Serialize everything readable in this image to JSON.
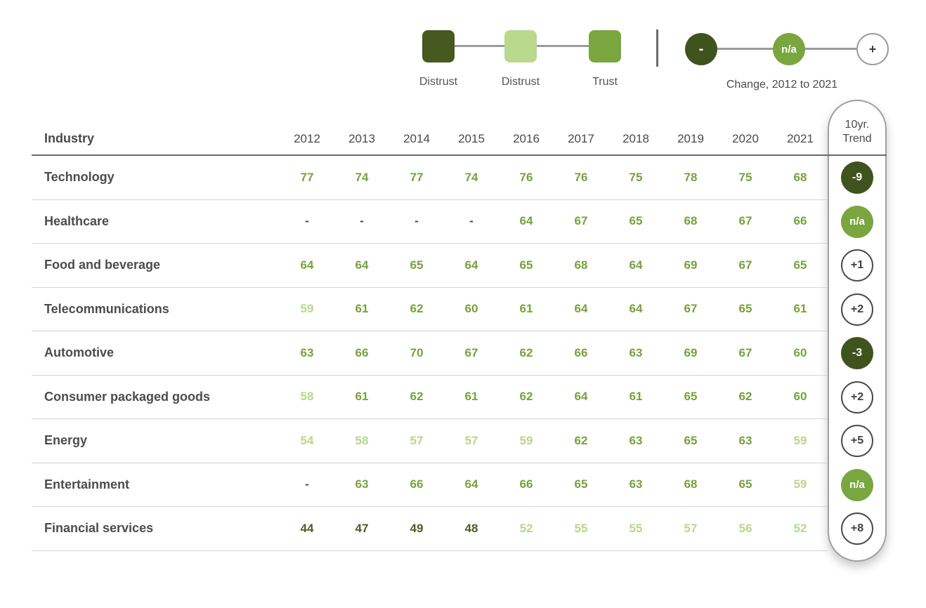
{
  "legend": {
    "scale": {
      "items": [
        {
          "name": "distrust-dark",
          "label": "Distrust",
          "color": "#46591e"
        },
        {
          "name": "distrust-light",
          "label": "Distrust",
          "color": "#b9d98c"
        },
        {
          "name": "trust",
          "label": "Trust",
          "color": "#7aa640"
        }
      ]
    },
    "change": {
      "minus_label": "-",
      "na_label": "n/a",
      "plus_label": "+",
      "caption": "Change, 2012 to 2021"
    }
  },
  "table": {
    "industry_header": "Industry",
    "years": [
      "2012",
      "2013",
      "2014",
      "2015",
      "2016",
      "2017",
      "2018",
      "2019",
      "2020",
      "2021"
    ],
    "trend_header_line1": "10yr.",
    "trend_header_line2": "Trend",
    "rows": [
      {
        "industry": "Technology",
        "values": [
          "77",
          "74",
          "77",
          "74",
          "76",
          "76",
          "75",
          "78",
          "75",
          "68"
        ],
        "tones": [
          "trust",
          "trust",
          "trust",
          "trust",
          "trust",
          "trust",
          "trust",
          "trust",
          "trust",
          "trust"
        ],
        "trend": {
          "label": "-9",
          "style": "dark"
        }
      },
      {
        "industry": "Healthcare",
        "values": [
          "-",
          "-",
          "-",
          "-",
          "64",
          "67",
          "65",
          "68",
          "67",
          "66"
        ],
        "tones": [
          "dash",
          "dash",
          "dash",
          "dash",
          "trust",
          "trust",
          "trust",
          "trust",
          "trust",
          "trust"
        ],
        "trend": {
          "label": "n/a",
          "style": "na"
        }
      },
      {
        "industry": "Food and beverage",
        "values": [
          "64",
          "64",
          "65",
          "64",
          "65",
          "68",
          "64",
          "69",
          "67",
          "65"
        ],
        "tones": [
          "trust",
          "trust",
          "trust",
          "trust",
          "trust",
          "trust",
          "trust",
          "trust",
          "trust",
          "trust"
        ],
        "trend": {
          "label": "+1",
          "style": "plus"
        }
      },
      {
        "industry": "Telecommunications",
        "values": [
          "59",
          "61",
          "62",
          "60",
          "61",
          "64",
          "64",
          "67",
          "65",
          "61"
        ],
        "tones": [
          "light",
          "trust",
          "trust",
          "trust",
          "trust",
          "trust",
          "trust",
          "trust",
          "trust",
          "trust"
        ],
        "trend": {
          "label": "+2",
          "style": "plus"
        }
      },
      {
        "industry": "Automotive",
        "values": [
          "63",
          "66",
          "70",
          "67",
          "62",
          "66",
          "63",
          "69",
          "67",
          "60"
        ],
        "tones": [
          "trust",
          "trust",
          "trust",
          "trust",
          "trust",
          "trust",
          "trust",
          "trust",
          "trust",
          "trust"
        ],
        "trend": {
          "label": "-3",
          "style": "dark"
        }
      },
      {
        "industry": "Consumer packaged goods",
        "values": [
          "58",
          "61",
          "62",
          "61",
          "62",
          "64",
          "61",
          "65",
          "62",
          "60"
        ],
        "tones": [
          "light",
          "trust",
          "trust",
          "trust",
          "trust",
          "trust",
          "trust",
          "trust",
          "trust",
          "trust"
        ],
        "trend": {
          "label": "+2",
          "style": "plus"
        }
      },
      {
        "industry": "Energy",
        "values": [
          "54",
          "58",
          "57",
          "57",
          "59",
          "62",
          "63",
          "65",
          "63",
          "59"
        ],
        "tones": [
          "light",
          "light",
          "light",
          "light",
          "light",
          "trust",
          "trust",
          "trust",
          "trust",
          "light"
        ],
        "trend": {
          "label": "+5",
          "style": "plus"
        }
      },
      {
        "industry": "Entertainment",
        "values": [
          "-",
          "63",
          "66",
          "64",
          "66",
          "65",
          "63",
          "68",
          "65",
          "59"
        ],
        "tones": [
          "dash",
          "trust",
          "trust",
          "trust",
          "trust",
          "trust",
          "trust",
          "trust",
          "trust",
          "light"
        ],
        "trend": {
          "label": "n/a",
          "style": "na"
        }
      },
      {
        "industry": "Financial services",
        "values": [
          "44",
          "47",
          "49",
          "48",
          "52",
          "55",
          "55",
          "57",
          "56",
          "52"
        ],
        "tones": [
          "dark",
          "dark",
          "dark",
          "dark",
          "light",
          "light",
          "light",
          "light",
          "light",
          "light"
        ],
        "trend": {
          "label": "+8",
          "style": "plus"
        }
      }
    ]
  },
  "colors": {
    "dark_green": "#46591e",
    "light_green": "#b9d98c",
    "trust_green": "#7aa640",
    "value_trust": "#76a23e",
    "value_light": "#b7d78b",
    "value_dark": "#4b5f26",
    "text_gray": "#4a4a4a",
    "capsule_border": "#a0a0a0"
  },
  "chart_data": {
    "type": "table",
    "title": "Trust in industry sectors, 2012 to 2021",
    "categories": [
      "2012",
      "2013",
      "2014",
      "2015",
      "2016",
      "2017",
      "2018",
      "2019",
      "2020",
      "2021"
    ],
    "legend": [
      "Distrust (dark green)",
      "Distrust (light green)",
      "Trust (green)",
      "Change, 2012 to 2021: - / n/a / +"
    ],
    "series": [
      {
        "name": "Technology",
        "values": [
          77,
          74,
          77,
          74,
          76,
          76,
          75,
          78,
          75,
          68
        ],
        "trend_10yr": "-9"
      },
      {
        "name": "Healthcare",
        "values": [
          null,
          null,
          null,
          null,
          64,
          67,
          65,
          68,
          67,
          66
        ],
        "trend_10yr": "n/a"
      },
      {
        "name": "Food and beverage",
        "values": [
          64,
          64,
          65,
          64,
          65,
          68,
          64,
          69,
          67,
          65
        ],
        "trend_10yr": "+1"
      },
      {
        "name": "Telecommunications",
        "values": [
          59,
          61,
          62,
          60,
          61,
          64,
          64,
          67,
          65,
          61
        ],
        "trend_10yr": "+2"
      },
      {
        "name": "Automotive",
        "values": [
          63,
          66,
          70,
          67,
          62,
          66,
          63,
          69,
          67,
          60
        ],
        "trend_10yr": "-3"
      },
      {
        "name": "Consumer packaged goods",
        "values": [
          58,
          61,
          62,
          61,
          62,
          64,
          61,
          65,
          62,
          60
        ],
        "trend_10yr": "+2"
      },
      {
        "name": "Energy",
        "values": [
          54,
          58,
          57,
          57,
          59,
          62,
          63,
          65,
          63,
          59
        ],
        "trend_10yr": "+5"
      },
      {
        "name": "Entertainment",
        "values": [
          null,
          63,
          66,
          64,
          66,
          65,
          63,
          68,
          65,
          59
        ],
        "trend_10yr": "n/a"
      },
      {
        "name": "Financial services",
        "values": [
          44,
          47,
          49,
          48,
          52,
          55,
          55,
          57,
          56,
          52
        ],
        "trend_10yr": "+8"
      }
    ]
  }
}
